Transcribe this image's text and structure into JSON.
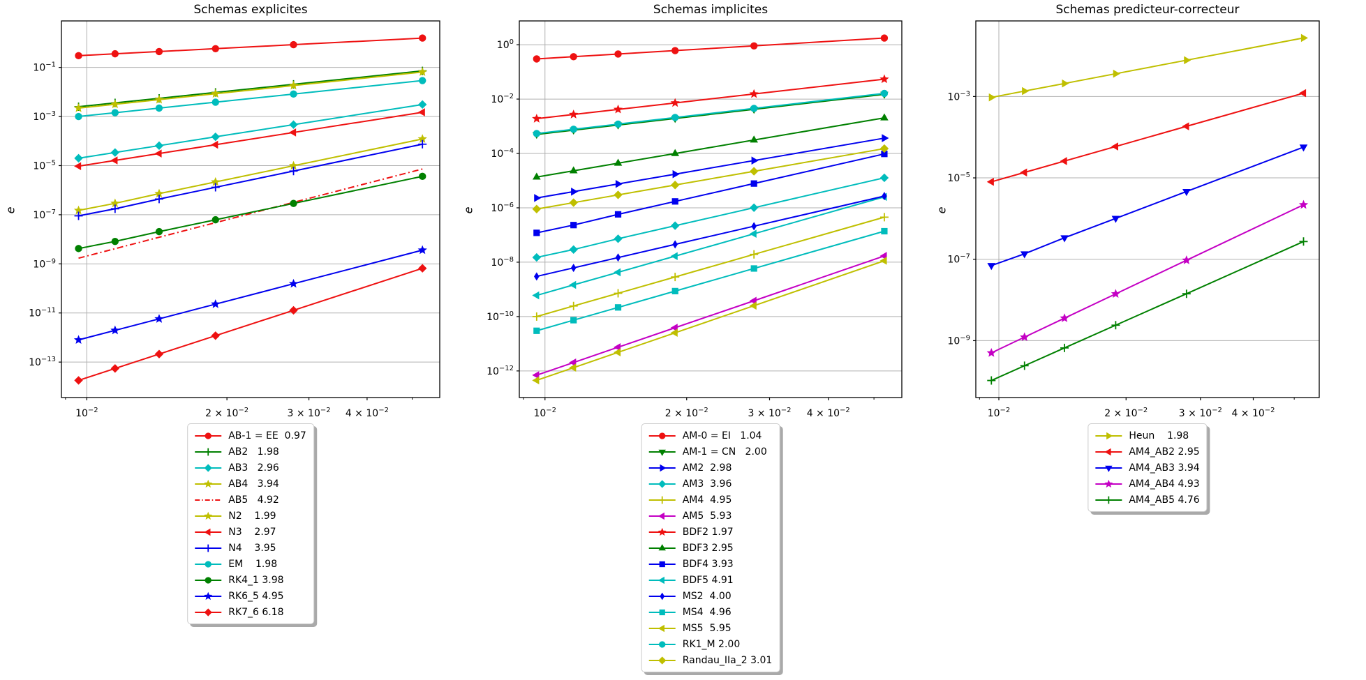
{
  "figure": {
    "background": "#ffffff",
    "grid_color": "#b0b0b0",
    "axis_color": "#000000"
  },
  "palette": {
    "red": "#ee1111",
    "green": "#008000",
    "blue": "#0000ee",
    "cyan": "#00bcbc",
    "magenta": "#c400c4",
    "yellow": "#bfbf00"
  },
  "chart_data": [
    {
      "type": "line",
      "title": "Schemas explicites",
      "ylabel": "e",
      "xscale": "log",
      "yscale": "log",
      "grid": true,
      "legend_position": "below",
      "x": [
        0.0096,
        0.0115,
        0.0143,
        0.0189,
        0.0278,
        0.0526
      ],
      "xlim": [
        0.00882,
        0.0573
      ],
      "ylim": [
        3.6e-15,
        7.8
      ],
      "xticks": [
        {
          "value": 0.01,
          "coeff": "",
          "exp": -2
        },
        {
          "value": 0.02,
          "coeff": "2",
          "exp": -2
        },
        {
          "value": 0.03,
          "coeff": "3",
          "exp": -2
        },
        {
          "value": 0.04,
          "coeff": "4",
          "exp": -2
        }
      ],
      "xminorticks": [
        0.009,
        0.05
      ],
      "ytick_exponents": [
        -1,
        -3,
        -5,
        -7,
        -9,
        -11,
        -13
      ],
      "series": [
        {
          "name": "AB-1 = EE",
          "order": "0.97",
          "legend_text": "AB-1 = EE  0.97",
          "color": "red",
          "marker": "circle",
          "linestyle": "solid",
          "y": [
            0.3,
            0.358,
            0.442,
            0.579,
            0.841,
            1.56
          ]
        },
        {
          "name": "AB2",
          "order": "1.98",
          "legend_text": "AB2   1.98",
          "color": "green",
          "marker": "plus",
          "linestyle": "solid",
          "y": [
            0.0025,
            0.00358,
            0.00551,
            0.00956,
            0.0205,
            0.0724
          ]
        },
        {
          "name": "AB3",
          "order": "2.96",
          "legend_text": "AB3   2.96",
          "color": "cyan",
          "marker": "diamond",
          "linestyle": "solid",
          "y": [
            2e-05,
            3.42e-05,
            6.51e-05,
            0.000149,
            0.000466,
            0.00308
          ]
        },
        {
          "name": "AB4",
          "order": "3.94",
          "legend_text": "AB4   3.94",
          "color": "yellow",
          "marker": "star",
          "linestyle": "solid",
          "y": [
            1.5e-07,
            2.91e-07,
            7.23e-07,
            2.16e-06,
            9.9e-06,
            0.000122
          ]
        },
        {
          "name": "AB5",
          "order": "4.92",
          "legend_text": "AB5   4.92",
          "color": "red",
          "marker": "none",
          "linestyle": "dashdot",
          "y": [
            1.7e-09,
            4.14e-09,
            1.21e-08,
            4.76e-08,
            3.19e-07,
            7.29e-06
          ]
        },
        {
          "name": "N2",
          "order": "1.99",
          "legend_text": "N2    1.99",
          "color": "yellow",
          "marker": "star",
          "linestyle": "solid",
          "y": [
            0.0022,
            0.00315,
            0.00487,
            0.00847,
            0.0182,
            0.0648
          ]
        },
        {
          "name": "N3",
          "order": "2.97",
          "legend_text": "N3    2.97",
          "color": "red",
          "marker": "tri_left",
          "linestyle": "solid",
          "y": [
            9.5e-06,
            1.63e-05,
            3.11e-05,
            7.1e-05,
            0.000224,
            0.00149
          ]
        },
        {
          "name": "N4",
          "order": "3.95",
          "legend_text": "N4    3.95",
          "color": "blue",
          "marker": "plus",
          "linestyle": "solid",
          "y": [
            9e-08,
            1.75e-07,
            4.35e-07,
            1.31e-06,
            6e-06,
            7.47e-05
          ]
        },
        {
          "name": "EM",
          "order": "1.98",
          "legend_text": "EM    1.98",
          "color": "cyan",
          "marker": "circle",
          "linestyle": "solid",
          "y": [
            0.001,
            0.00143,
            0.0022,
            0.00383,
            0.00821,
            0.029
          ]
        },
        {
          "name": "RK4_1",
          "order": "3.98",
          "legend_text": "RK4_1 3.98",
          "color": "green",
          "marker": "circle",
          "linestyle": "solid",
          "y": [
            4.2e-09,
            8.2e-09,
            2.05e-08,
            6.23e-08,
            2.89e-07,
            3.66e-06
          ]
        },
        {
          "name": "RK6_5",
          "order": "4.95",
          "legend_text": "RK6_5 4.95",
          "color": "blue",
          "marker": "star",
          "linestyle": "solid",
          "y": [
            8e-13,
            1.96e-12,
            5.75e-12,
            2.29e-11,
            1.55e-10,
            3.62e-09
          ]
        },
        {
          "name": "RK7_6",
          "order": "6.18",
          "legend_text": "RK7_6 6.18",
          "color": "red",
          "marker": "diamond",
          "linestyle": "solid",
          "y": [
            1.8e-14,
            5.5e-14,
            2.12e-13,
            1.19e-12,
            1.28e-11,
            6.59e-10
          ]
        }
      ]
    },
    {
      "type": "line",
      "title": "Schemas implicites",
      "ylabel": "e",
      "xscale": "log",
      "yscale": "log",
      "grid": true,
      "legend_position": "below",
      "x": [
        0.0096,
        0.0115,
        0.0143,
        0.0189,
        0.0278,
        0.0526
      ],
      "xlim": [
        0.00882,
        0.0573
      ],
      "ylim": [
        1.05e-13,
        7.5
      ],
      "xticks": [
        {
          "value": 0.01,
          "coeff": "",
          "exp": -2
        },
        {
          "value": 0.02,
          "coeff": "2",
          "exp": -2
        },
        {
          "value": 0.03,
          "coeff": "3",
          "exp": -2
        },
        {
          "value": 0.04,
          "coeff": "4",
          "exp": -2
        }
      ],
      "xminorticks": [
        0.009,
        0.05
      ],
      "ytick_exponents": [
        0,
        -2,
        -4,
        -6,
        -8,
        -10,
        -12
      ],
      "series": [
        {
          "name": "AM-0 = EI",
          "order": "1.04",
          "legend_text": "AM-0 = EI   1.04",
          "color": "red",
          "marker": "circle",
          "linestyle": "solid",
          "y": [
            0.3,
            0.362,
            0.454,
            0.607,
            0.905,
            1.76
          ]
        },
        {
          "name": "AM-1 = CN",
          "order": "2.00",
          "legend_text": "AM-1 = CN   2.00",
          "color": "green",
          "marker": "tri_down",
          "linestyle": "solid",
          "y": [
            0.0005,
            0.000718,
            0.00111,
            0.00194,
            0.0042,
            0.015
          ]
        },
        {
          "name": "AM2",
          "order": "2.98",
          "legend_text": "AM2  2.98",
          "color": "blue",
          "marker": "tri_right",
          "linestyle": "solid",
          "y": [
            2.3e-06,
            3.94e-06,
            7.55e-06,
            1.73e-05,
            5.48e-05,
            0.000366
          ]
        },
        {
          "name": "AM3",
          "order": "3.96",
          "legend_text": "AM3  3.96",
          "color": "cyan",
          "marker": "diamond",
          "linestyle": "solid",
          "y": [
            1.5e-08,
            2.92e-08,
            7.28e-08,
            2.2e-07,
            1.01e-06,
            1.27e-05
          ]
        },
        {
          "name": "AM4",
          "order": "4.95",
          "legend_text": "AM4  4.95",
          "color": "yellow",
          "marker": "plus",
          "linestyle": "solid",
          "y": [
            1e-10,
            2.45e-10,
            7.19e-10,
            2.86e-09,
            1.94e-08,
            4.53e-07
          ]
        },
        {
          "name": "AM5",
          "order": "5.93",
          "legend_text": "AM5  5.93",
          "color": "magenta",
          "marker": "tri_left",
          "linestyle": "solid",
          "y": [
            7e-13,
            2.04e-12,
            7.46e-12,
            3.89e-11,
            3.81e-10,
            1.7e-08
          ]
        },
        {
          "name": "BDF2",
          "order": "1.97",
          "legend_text": "BDF2 1.97",
          "color": "red",
          "marker": "star",
          "linestyle": "solid",
          "y": [
            0.0019,
            0.00271,
            0.00417,
            0.00722,
            0.0154,
            0.0541
          ]
        },
        {
          "name": "BDF3",
          "order": "2.95",
          "legend_text": "BDF3 2.95",
          "color": "green",
          "marker": "tri_up",
          "linestyle": "solid",
          "y": [
            1.35e-05,
            2.3e-05,
            4.38e-05,
            9.96e-05,
            0.000312,
            0.00204
          ]
        },
        {
          "name": "BDF4",
          "order": "3.93",
          "legend_text": "BDF4 3.93",
          "color": "blue",
          "marker": "square",
          "linestyle": "solid",
          "y": [
            1.2e-07,
            2.32e-07,
            5.75e-07,
            1.72e-06,
            7.82e-06,
            9.6e-05
          ]
        },
        {
          "name": "BDF5",
          "order": "4.91",
          "legend_text": "BDF5 4.91",
          "color": "cyan",
          "marker": "tri_left",
          "linestyle": "solid",
          "y": [
            6e-10,
            1.46e-09,
            4.25e-09,
            1.67e-08,
            1.11e-07,
            2.53e-06
          ]
        },
        {
          "name": "MS2",
          "order": "4.00",
          "legend_text": "MS2  4.00",
          "color": "blue",
          "marker": "thin_diamond",
          "linestyle": "solid",
          "y": [
            3e-09,
            6.18e-09,
            1.48e-08,
            4.52e-08,
            2.11e-07,
            2.7e-06
          ]
        },
        {
          "name": "MS4",
          "order": "4.96",
          "legend_text": "MS4  4.96",
          "color": "cyan",
          "marker": "square",
          "linestyle": "solid",
          "y": [
            3e-11,
            7.36e-11,
            2.17e-10,
            8.64e-10,
            5.87e-09,
            1.38e-07
          ]
        },
        {
          "name": "MS5",
          "order": "5.95",
          "legend_text": "MS5  5.95",
          "color": "yellow",
          "marker": "tri_left",
          "linestyle": "solid",
          "y": [
            4.5e-13,
            1.32e-12,
            4.83e-12,
            2.53e-11,
            2.51e-10,
            1.13e-08
          ]
        },
        {
          "name": "RK1_M",
          "order": "2.00",
          "legend_text": "RK1_M 2.00",
          "color": "cyan",
          "marker": "circle",
          "linestyle": "solid",
          "y": [
            0.00054,
            0.000775,
            0.0012,
            0.0021,
            0.00454,
            0.0162
          ]
        },
        {
          "name": "Randau_IIa_2",
          "order": "3.01",
          "legend_text": "Randau_IIa_2 3.01",
          "color": "yellow",
          "marker": "diamond",
          "linestyle": "solid",
          "y": [
            9e-07,
            1.55e-06,
            2.99e-06,
            6.91e-06,
            2.21e-05,
            0.000151
          ]
        }
      ]
    },
    {
      "type": "line",
      "title": "Schemas predicteur-correcteur",
      "ylabel": "e",
      "xscale": "log",
      "yscale": "log",
      "grid": true,
      "legend_position": "below",
      "x": [
        0.0096,
        0.0115,
        0.0143,
        0.0189,
        0.0278,
        0.0526
      ],
      "xlim": [
        0.00882,
        0.0573
      ],
      "ylim": [
        4e-11,
        0.072
      ],
      "xticks": [
        {
          "value": 0.01,
          "coeff": "",
          "exp": -2
        },
        {
          "value": 0.02,
          "coeff": "2",
          "exp": -2
        },
        {
          "value": 0.03,
          "coeff": "3",
          "exp": -2
        },
        {
          "value": 0.04,
          "coeff": "4",
          "exp": -2
        }
      ],
      "xminorticks": [
        0.009,
        0.05
      ],
      "ytick_exponents": [
        -3,
        -5,
        -7,
        -9
      ],
      "series": [
        {
          "name": "Heun",
          "order": "1.98",
          "legend_text": "Heun    1.98",
          "color": "yellow",
          "marker": "tri_right",
          "linestyle": "solid",
          "y": [
            0.00095,
            0.00136,
            0.00209,
            0.00363,
            0.0078,
            0.0275
          ]
        },
        {
          "name": "AM4_AB2",
          "order": "2.95",
          "legend_text": "AM4_AB2 2.95",
          "color": "red",
          "marker": "tri_left",
          "linestyle": "solid",
          "y": [
            8e-06,
            1.36e-05,
            2.59e-05,
            5.91e-05,
            0.000185,
            0.00121
          ]
        },
        {
          "name": "AM4_AB3",
          "order": "3.94",
          "legend_text": "AM4_AB3 3.94",
          "color": "blue",
          "marker": "tri_down",
          "linestyle": "solid",
          "y": [
            7e-08,
            1.36e-07,
            3.37e-07,
            1.01e-06,
            4.62e-06,
            5.71e-05
          ]
        },
        {
          "name": "AM4_AB4",
          "order": "4.93",
          "legend_text": "AM4_AB4 4.93",
          "color": "magenta",
          "marker": "star",
          "linestyle": "solid",
          "y": [
            5e-10,
            1.22e-09,
            3.57e-09,
            1.41e-08,
            9.45e-08,
            2.18e-06
          ]
        },
        {
          "name": "AM4_AB5",
          "order": "4.76",
          "legend_text": "AM4_AB5 4.76",
          "color": "green",
          "marker": "plus",
          "linestyle": "solid",
          "y": [
            1.05e-10,
            2.42e-10,
            6.63e-10,
            2.4e-09,
            1.42e-08,
            2.73e-07
          ]
        }
      ]
    }
  ]
}
